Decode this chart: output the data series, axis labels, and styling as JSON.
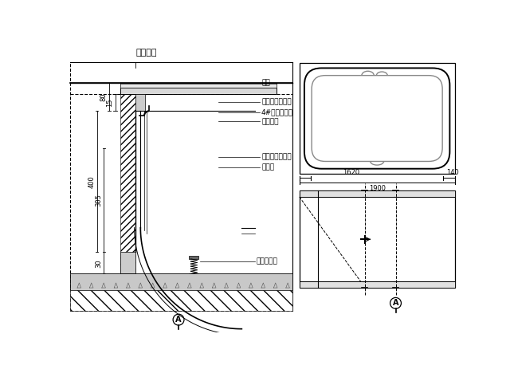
{
  "bg_color": "#ffffff",
  "lc": "#000000",
  "title": "石材地面",
  "labels": [
    "石材",
    "水泥砂浆结合层",
    "4#角钢防锈漆",
    "成品落缸",
    "水泥砂浆防刷层",
    "钢丝网"
  ],
  "label_adjuster": "高度调节器",
  "dims_left": [
    "80",
    "15",
    "400",
    "305",
    "30"
  ],
  "dim_tr": [
    "140",
    "1620",
    "140",
    "1900"
  ],
  "sym": "A"
}
